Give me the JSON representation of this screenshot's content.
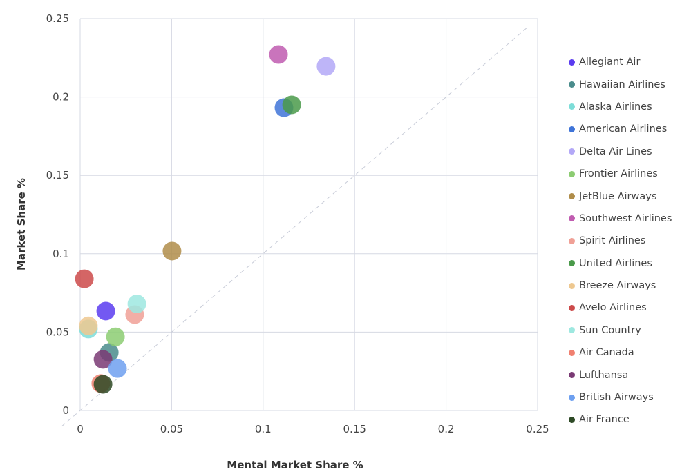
{
  "chart_data": {
    "type": "scatter",
    "xlabel": "Mental Market Share %",
    "ylabel": "Market Share %",
    "xlim": [
      0,
      0.25
    ],
    "ylim": [
      0,
      0.25
    ],
    "x_ticks": [
      "0",
      "0.05",
      "0.1",
      "0.15",
      "0.2",
      "0.25"
    ],
    "y_ticks": [
      "0",
      "0.05",
      "0.1",
      "0.15",
      "0.2",
      "0.25"
    ],
    "grid": true,
    "reference_line": "y = x (dashed)",
    "legend_position": "right",
    "series": [
      {
        "name": "Allegiant Air",
        "color": "#5b3cf0",
        "x": 0.014,
        "y": 0.0634
      },
      {
        "name": "Hawaiian Airlines",
        "color": "#4a8c8c",
        "x": 0.0159,
        "y": 0.037
      },
      {
        "name": "Alaska Airlines",
        "color": "#7dddd8",
        "x": 0.0045,
        "y": 0.052
      },
      {
        "name": "American Airlines",
        "color": "#3f74d8",
        "x": 0.1114,
        "y": 0.1932
      },
      {
        "name": "Delta Air Lines",
        "color": "#b3a8f7",
        "x": 0.1344,
        "y": 0.2196
      },
      {
        "name": "Frontier Airlines",
        "color": "#8ccc72",
        "x": 0.0193,
        "y": 0.047
      },
      {
        "name": "JetBlue Airways",
        "color": "#b08d4a",
        "x": 0.0502,
        "y": 0.1017
      },
      {
        "name": "Southwest Airlines",
        "color": "#c05cb0",
        "x": 0.1084,
        "y": 0.2271
      },
      {
        "name": "Spirit Airlines",
        "color": "#f0a096",
        "x": 0.0298,
        "y": 0.0612
      },
      {
        "name": "United Airlines",
        "color": "#4a9a4a",
        "x": 0.1156,
        "y": 0.195
      },
      {
        "name": "Breeze Airways",
        "color": "#eec890",
        "x": 0.0045,
        "y": 0.054
      },
      {
        "name": "Avelo Airlines",
        "color": "#cc4a4a",
        "x": 0.0023,
        "y": 0.084
      },
      {
        "name": "Sun Country",
        "color": "#9ee8e0",
        "x": 0.031,
        "y": 0.068
      },
      {
        "name": "Air Canada",
        "color": "#f08070",
        "x": 0.0113,
        "y": 0.0172
      },
      {
        "name": "Lufthansa",
        "color": "#7a3a74",
        "x": 0.0125,
        "y": 0.0326
      },
      {
        "name": "British Airways",
        "color": "#6ea0f0",
        "x": 0.0204,
        "y": 0.0268
      },
      {
        "name": "Air France",
        "color": "#2e4a26",
        "x": 0.0125,
        "y": 0.0167
      }
    ]
  }
}
